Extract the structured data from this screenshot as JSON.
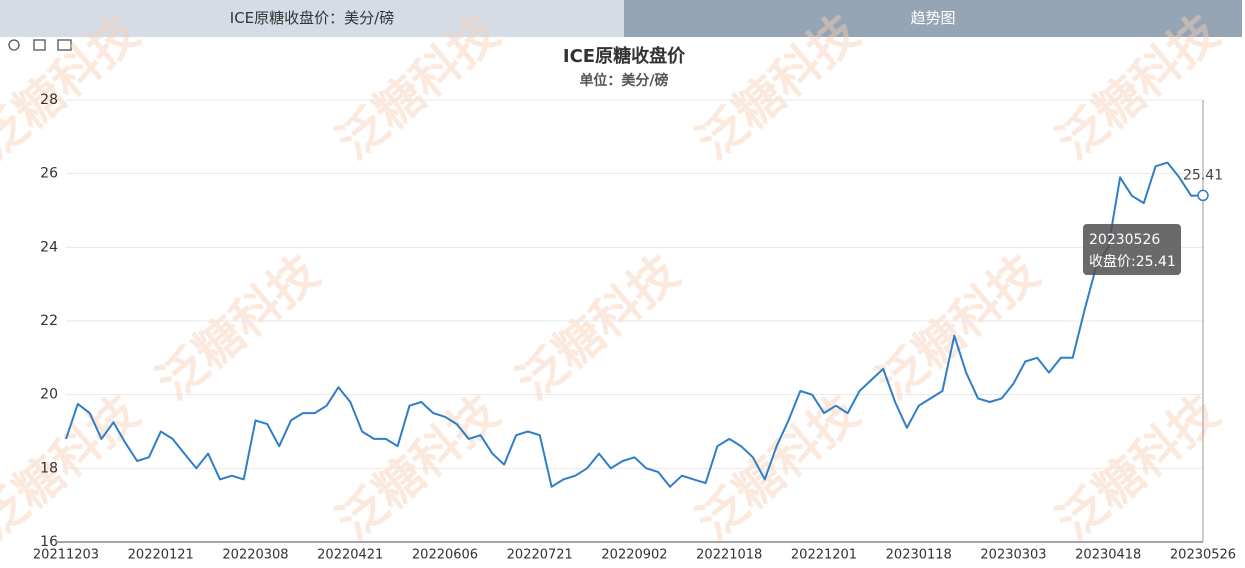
{
  "tabs": [
    "ICE原糖收盘价：美分/磅",
    "趋势图"
  ],
  "watermark": "泛糖科技",
  "tooltip": [
    "20230526",
    "收盘价:25.41"
  ],
  "chart_data": {
    "type": "line",
    "title": "ICE原糖收盘价",
    "subtitle": "单位：美分/磅",
    "categories": [
      "20211203",
      null,
      null,
      null,
      null,
      null,
      null,
      null,
      "20220121",
      null,
      null,
      null,
      null,
      null,
      null,
      null,
      "20220308",
      null,
      null,
      null,
      null,
      null,
      null,
      null,
      "20220421",
      null,
      null,
      null,
      null,
      null,
      null,
      null,
      "20220606",
      null,
      null,
      null,
      null,
      null,
      null,
      null,
      "20220721",
      null,
      null,
      null,
      null,
      null,
      null,
      null,
      "20220902",
      null,
      null,
      null,
      null,
      null,
      null,
      null,
      "20221018",
      null,
      null,
      null,
      null,
      null,
      null,
      null,
      "20221201",
      null,
      null,
      null,
      null,
      null,
      null,
      null,
      "20230118",
      null,
      null,
      null,
      null,
      null,
      null,
      null,
      "20230303",
      null,
      null,
      null,
      null,
      null,
      null,
      null,
      "20230418",
      null,
      null,
      null,
      null,
      null,
      null,
      null,
      "20230526"
    ],
    "series": [
      {
        "color": "#2f7ec8",
        "values": [
          18.8,
          19.75,
          19.5,
          18.8,
          19.25,
          18.7,
          18.2,
          18.3,
          19.0,
          18.8,
          18.4,
          18.0,
          18.4,
          17.7,
          17.8,
          17.7,
          19.3,
          19.2,
          18.6,
          19.3,
          19.5,
          19.5,
          19.7,
          20.2,
          19.8,
          19.0,
          18.8,
          18.8,
          18.6,
          19.7,
          19.8,
          19.5,
          19.4,
          19.2,
          18.8,
          18.9,
          18.4,
          18.1,
          18.9,
          19.0,
          18.9,
          17.5,
          17.7,
          17.8,
          18.0,
          18.4,
          18.0,
          18.2,
          18.3,
          18.0,
          17.9,
          17.5,
          17.8,
          17.7,
          17.6,
          18.6,
          18.8,
          18.6,
          18.3,
          17.7,
          18.6,
          19.3,
          20.1,
          20.0,
          19.5,
          19.7,
          19.5,
          20.1,
          20.4,
          20.7,
          19.8,
          19.1,
          19.7,
          19.9,
          20.1,
          21.6,
          20.6,
          19.9,
          19.8,
          19.9,
          20.3,
          20.9,
          21.0,
          20.6,
          21.0,
          21.0,
          22.3,
          23.5,
          24.0,
          25.9,
          25.4,
          25.2,
          26.2,
          26.3,
          25.9,
          25.4,
          25.41
        ]
      }
    ],
    "ylim": [
      16,
      28
    ],
    "yticks": [
      16,
      18,
      20,
      22,
      24,
      26,
      28
    ],
    "grid": true
  }
}
